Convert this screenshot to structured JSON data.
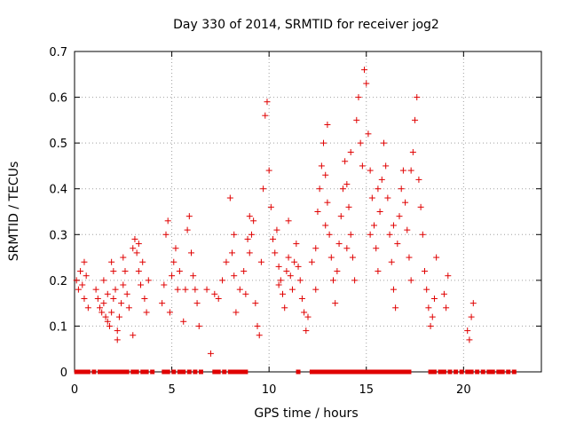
{
  "chart_data": {
    "type": "scatter",
    "title": "Day 330 of 2014, SRMTID for receiver jog2",
    "xlabel": "GPS time / hours",
    "ylabel": "SRMTID / TECUs",
    "xlim": [
      0,
      24
    ],
    "ylim": [
      0,
      0.7
    ],
    "xticks": [
      0,
      5,
      10,
      15,
      20
    ],
    "xtick_labels": [
      "0",
      "5",
      "10",
      "15",
      "20"
    ],
    "yticks": [
      0,
      0.1,
      0.2,
      0.3,
      0.4,
      0.5,
      0.6,
      0.7
    ],
    "ytick_labels": [
      "0",
      "0.1",
      "0.2",
      "0.3",
      "0.4",
      "0.5",
      "0.6",
      "0.7"
    ],
    "grid": true,
    "marker": "plus",
    "color": "#e00000",
    "series": [
      {
        "name": "SRMTID",
        "points": [
          [
            0.1,
            0.2
          ],
          [
            0.2,
            0.18
          ],
          [
            0.3,
            0.22
          ],
          [
            0.4,
            0.19
          ],
          [
            0.5,
            0.24
          ],
          [
            0.6,
            0.21
          ],
          [
            0.7,
            0.14
          ],
          [
            0.5,
            0.16
          ],
          [
            1.1,
            0.18
          ],
          [
            1.2,
            0.16
          ],
          [
            1.3,
            0.14
          ],
          [
            1.4,
            0.13
          ],
          [
            1.5,
            0.15
          ],
          [
            1.6,
            0.12
          ],
          [
            1.7,
            0.11
          ],
          [
            1.8,
            0.1
          ],
          [
            1.9,
            0.13
          ],
          [
            2.0,
            0.16
          ],
          [
            2.1,
            0.18
          ],
          [
            2.2,
            0.09
          ],
          [
            2.3,
            0.12
          ],
          [
            2.4,
            0.15
          ],
          [
            2.5,
            0.19
          ],
          [
            2.6,
            0.22
          ],
          [
            2.7,
            0.17
          ],
          [
            2.8,
            0.14
          ],
          [
            1.5,
            0.2
          ],
          [
            1.7,
            0.17
          ],
          [
            2.0,
            0.22
          ],
          [
            2.2,
            0.07
          ],
          [
            1.9,
            0.24
          ],
          [
            2.5,
            0.25
          ],
          [
            3.0,
            0.27
          ],
          [
            3.1,
            0.29
          ],
          [
            3.2,
            0.26
          ],
          [
            3.3,
            0.22
          ],
          [
            3.4,
            0.19
          ],
          [
            3.5,
            0.24
          ],
          [
            3.6,
            0.16
          ],
          [
            3.7,
            0.13
          ],
          [
            3.8,
            0.2
          ],
          [
            3.0,
            0.08
          ],
          [
            3.3,
            0.28
          ],
          [
            4.5,
            0.15
          ],
          [
            4.6,
            0.19
          ],
          [
            4.7,
            0.3
          ],
          [
            4.8,
            0.33
          ],
          [
            4.9,
            0.13
          ],
          [
            5.0,
            0.21
          ],
          [
            5.1,
            0.24
          ],
          [
            5.2,
            0.27
          ],
          [
            5.3,
            0.18
          ],
          [
            5.4,
            0.22
          ],
          [
            5.6,
            0.11
          ],
          [
            5.7,
            0.18
          ],
          [
            5.8,
            0.31
          ],
          [
            5.9,
            0.34
          ],
          [
            6.0,
            0.26
          ],
          [
            6.1,
            0.21
          ],
          [
            6.3,
            0.15
          ],
          [
            6.4,
            0.1
          ],
          [
            6.2,
            0.18
          ],
          [
            7.0,
            0.04
          ],
          [
            7.2,
            0.17
          ],
          [
            7.4,
            0.16
          ],
          [
            7.6,
            0.2
          ],
          [
            7.8,
            0.24
          ],
          [
            8.0,
            0.38
          ],
          [
            8.1,
            0.26
          ],
          [
            8.2,
            0.21
          ],
          [
            8.3,
            0.13
          ],
          [
            8.5,
            0.18
          ],
          [
            8.7,
            0.22
          ],
          [
            8.8,
            0.17
          ],
          [
            8.9,
            0.29
          ],
          [
            9.0,
            0.26
          ],
          [
            9.1,
            0.3
          ],
          [
            9.2,
            0.33
          ],
          [
            9.3,
            0.15
          ],
          [
            9.4,
            0.1
          ],
          [
            9.5,
            0.08
          ],
          [
            9.6,
            0.24
          ],
          [
            9.7,
            0.4
          ],
          [
            9.8,
            0.56
          ],
          [
            9.9,
            0.59
          ],
          [
            10.0,
            0.44
          ],
          [
            10.1,
            0.36
          ],
          [
            10.2,
            0.29
          ],
          [
            10.3,
            0.26
          ],
          [
            10.4,
            0.31
          ],
          [
            10.5,
            0.23
          ],
          [
            10.6,
            0.2
          ],
          [
            10.7,
            0.17
          ],
          [
            10.8,
            0.14
          ],
          [
            10.9,
            0.22
          ],
          [
            11.0,
            0.25
          ],
          [
            11.1,
            0.21
          ],
          [
            11.2,
            0.18
          ],
          [
            11.3,
            0.24
          ],
          [
            11.4,
            0.28
          ],
          [
            11.5,
            0.23
          ],
          [
            11.6,
            0.2
          ],
          [
            11.7,
            0.16
          ],
          [
            11.8,
            0.13
          ],
          [
            11.9,
            0.09
          ],
          [
            12.0,
            0.12
          ],
          [
            12.2,
            0.24
          ],
          [
            12.4,
            0.18
          ],
          [
            12.5,
            0.35
          ],
          [
            12.6,
            0.4
          ],
          [
            12.7,
            0.45
          ],
          [
            12.8,
            0.5
          ],
          [
            12.9,
            0.43
          ],
          [
            13.0,
            0.37
          ],
          [
            13.1,
            0.3
          ],
          [
            13.2,
            0.25
          ],
          [
            13.3,
            0.2
          ],
          [
            13.4,
            0.15
          ],
          [
            13.5,
            0.22
          ],
          [
            13.6,
            0.28
          ],
          [
            13.7,
            0.34
          ],
          [
            13.8,
            0.4
          ],
          [
            13.9,
            0.46
          ],
          [
            14.0,
            0.41
          ],
          [
            14.1,
            0.36
          ],
          [
            14.2,
            0.3
          ],
          [
            14.3,
            0.25
          ],
          [
            14.4,
            0.2
          ],
          [
            14.5,
            0.55
          ],
          [
            14.6,
            0.6
          ],
          [
            14.7,
            0.5
          ],
          [
            14.8,
            0.45
          ],
          [
            14.9,
            0.66
          ],
          [
            15.0,
            0.63
          ],
          [
            15.1,
            0.52
          ],
          [
            15.2,
            0.44
          ],
          [
            15.3,
            0.38
          ],
          [
            15.4,
            0.32
          ],
          [
            15.5,
            0.27
          ],
          [
            15.6,
            0.22
          ],
          [
            15.7,
            0.35
          ],
          [
            15.8,
            0.42
          ],
          [
            15.9,
            0.5
          ],
          [
            16.0,
            0.45
          ],
          [
            16.1,
            0.38
          ],
          [
            16.2,
            0.3
          ],
          [
            16.3,
            0.24
          ],
          [
            16.4,
            0.18
          ],
          [
            16.5,
            0.14
          ],
          [
            16.6,
            0.28
          ],
          [
            16.7,
            0.34
          ],
          [
            16.8,
            0.4
          ],
          [
            16.9,
            0.44
          ],
          [
            17.0,
            0.37
          ],
          [
            17.1,
            0.31
          ],
          [
            17.2,
            0.25
          ],
          [
            17.3,
            0.2
          ],
          [
            17.4,
            0.48
          ],
          [
            17.5,
            0.55
          ],
          [
            17.6,
            0.6
          ],
          [
            17.7,
            0.42
          ],
          [
            17.8,
            0.36
          ],
          [
            17.9,
            0.3
          ],
          [
            18.0,
            0.22
          ],
          [
            18.1,
            0.18
          ],
          [
            18.2,
            0.14
          ],
          [
            18.3,
            0.1
          ],
          [
            18.4,
            0.12
          ],
          [
            18.5,
            0.16
          ],
          [
            18.6,
            0.25
          ],
          [
            19.0,
            0.17
          ],
          [
            19.1,
            0.14
          ],
          [
            19.2,
            0.21
          ],
          [
            20.2,
            0.09
          ],
          [
            20.3,
            0.07
          ],
          [
            20.4,
            0.12
          ],
          [
            20.5,
            0.15
          ],
          [
            13.0,
            0.54
          ],
          [
            14.2,
            0.48
          ],
          [
            15.6,
            0.4
          ],
          [
            12.9,
            0.32
          ],
          [
            11.0,
            0.33
          ],
          [
            9.0,
            0.34
          ],
          [
            8.2,
            0.3
          ],
          [
            16.4,
            0.32
          ],
          [
            17.3,
            0.44
          ],
          [
            14.0,
            0.27
          ],
          [
            15.2,
            0.3
          ],
          [
            12.4,
            0.27
          ],
          [
            10.5,
            0.19
          ],
          [
            6.8,
            0.18
          ]
        ]
      }
    ],
    "zero_markers_x": [
      0.1,
      0.3,
      0.5,
      0.7,
      1.0,
      1.3,
      1.5,
      1.7,
      1.9,
      2.1,
      2.3,
      2.5,
      2.7,
      3.0,
      3.2,
      3.5,
      3.7,
      4.0,
      4.6,
      4.8,
      5.1,
      5.4,
      5.6,
      5.9,
      6.2,
      6.5,
      7.2,
      7.4,
      7.7,
      8.0,
      8.2,
      8.4,
      8.6,
      8.8,
      11.5,
      12.2,
      12.4,
      12.6,
      12.8,
      13.0,
      13.2,
      13.4,
      13.6,
      13.8,
      14.0,
      14.2,
      14.4,
      14.6,
      14.8,
      15.0,
      15.2,
      15.4,
      15.6,
      15.8,
      16.0,
      16.2,
      16.4,
      16.6,
      16.8,
      17.0,
      17.2,
      18.3,
      18.5,
      18.8,
      19.0,
      19.3,
      19.6,
      19.9,
      20.2,
      20.4,
      20.7,
      21.0,
      21.3,
      21.5,
      21.8,
      22.0,
      22.3,
      22.6
    ]
  }
}
